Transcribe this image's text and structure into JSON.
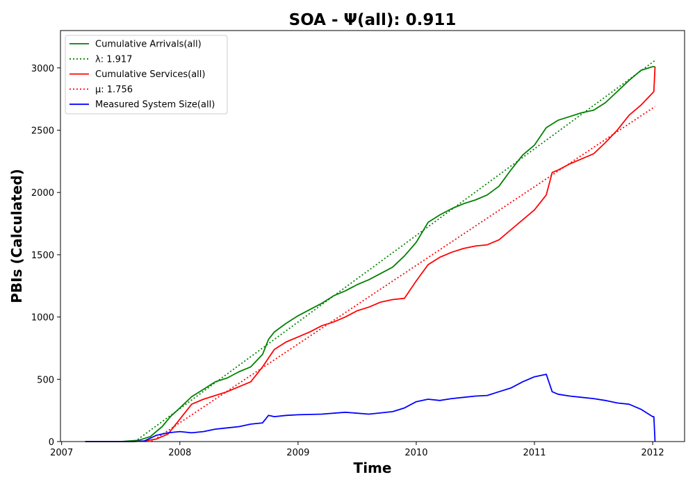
{
  "chart_data": {
    "type": "line",
    "title": "SOA -  Ψ(all): 0.911",
    "xlabel": "Time",
    "ylabel": "PBIs (Calculated)",
    "xlim": [
      2006.99,
      2012.27
    ],
    "ylim": [
      0,
      3300
    ],
    "xticks": [
      2007,
      2008,
      2009,
      2010,
      2011,
      2012
    ],
    "xtick_labels": [
      "2007",
      "2008",
      "2009",
      "2010",
      "2011",
      "2012"
    ],
    "yticks": [
      0,
      500,
      1000,
      1500,
      2000,
      2500,
      3000
    ],
    "ytick_labels": [
      "0",
      "500",
      "1000",
      "1500",
      "2000",
      "2500",
      "3000"
    ],
    "grid": false,
    "legend_position": "top-left",
    "series": [
      {
        "name": "Cumulative Arrivals(all)",
        "color": "#008000",
        "style": "solid",
        "x": [
          2007.2,
          2007.5,
          2007.65,
          2007.75,
          2007.85,
          2007.92,
          2008.0,
          2008.1,
          2008.2,
          2008.3,
          2008.4,
          2008.5,
          2008.6,
          2008.7,
          2008.75,
          2008.8,
          2008.9,
          2009.0,
          2009.1,
          2009.2,
          2009.3,
          2009.4,
          2009.5,
          2009.6,
          2009.7,
          2009.8,
          2009.9,
          2010.0,
          2010.1,
          2010.2,
          2010.3,
          2010.4,
          2010.5,
          2010.6,
          2010.7,
          2010.8,
          2010.9,
          2011.0,
          2011.1,
          2011.2,
          2011.3,
          2011.4,
          2011.5,
          2011.6,
          2011.7,
          2011.8,
          2011.9,
          2012.0,
          2012.02
        ],
        "y": [
          0,
          0,
          10,
          40,
          120,
          200,
          270,
          360,
          420,
          480,
          510,
          560,
          600,
          700,
          820,
          880,
          950,
          1010,
          1060,
          1110,
          1170,
          1210,
          1260,
          1300,
          1350,
          1400,
          1490,
          1600,
          1760,
          1820,
          1870,
          1910,
          1940,
          1980,
          2050,
          2180,
          2300,
          2380,
          2520,
          2580,
          2610,
          2640,
          2660,
          2720,
          2810,
          2900,
          2980,
          3010,
          3010
        ]
      },
      {
        "name": "λ: 1.917",
        "color": "#008000",
        "style": "dotted",
        "x": [
          2007.62,
          2012.02
        ],
        "y": [
          0,
          3060
        ]
      },
      {
        "name": "Cumulative Services(all)",
        "color": "#ff0000",
        "style": "solid",
        "x": [
          2007.2,
          2007.6,
          2007.7,
          2007.8,
          2007.9,
          2008.0,
          2008.05,
          2008.1,
          2008.2,
          2008.3,
          2008.4,
          2008.5,
          2008.6,
          2008.7,
          2008.8,
          2008.9,
          2009.0,
          2009.1,
          2009.2,
          2009.3,
          2009.4,
          2009.5,
          2009.6,
          2009.7,
          2009.8,
          2009.9,
          2010.0,
          2010.1,
          2010.2,
          2010.3,
          2010.4,
          2010.5,
          2010.6,
          2010.7,
          2010.8,
          2010.9,
          2011.0,
          2011.1,
          2011.15,
          2011.2,
          2011.3,
          2011.4,
          2011.5,
          2011.6,
          2011.7,
          2011.8,
          2011.9,
          2012.0,
          2012.01,
          2012.02
        ],
        "y": [
          0,
          0,
          5,
          20,
          60,
          180,
          240,
          300,
          340,
          370,
          400,
          440,
          480,
          600,
          740,
          800,
          840,
          880,
          930,
          960,
          1000,
          1050,
          1080,
          1120,
          1140,
          1150,
          1290,
          1420,
          1480,
          1520,
          1550,
          1570,
          1580,
          1620,
          1700,
          1780,
          1860,
          1980,
          2160,
          2180,
          2230,
          2270,
          2310,
          2400,
          2500,
          2620,
          2700,
          2800,
          2810,
          3010
        ]
      },
      {
        "name": "μ: 1.756",
        "color": "#ff0000",
        "style": "dotted",
        "x": [
          2007.76,
          2012.02
        ],
        "y": [
          0,
          2690
        ]
      },
      {
        "name": "Measured System Size(all)",
        "color": "#0000ff",
        "style": "solid",
        "x": [
          2007.2,
          2007.6,
          2007.7,
          2007.8,
          2007.9,
          2008.0,
          2008.1,
          2008.2,
          2008.3,
          2008.4,
          2008.5,
          2008.6,
          2008.7,
          2008.75,
          2008.8,
          2008.9,
          2009.0,
          2009.2,
          2009.4,
          2009.6,
          2009.8,
          2009.9,
          2010.0,
          2010.1,
          2010.2,
          2010.3,
          2010.4,
          2010.5,
          2010.6,
          2010.7,
          2010.8,
          2010.9,
          2011.0,
          2011.1,
          2011.15,
          2011.2,
          2011.3,
          2011.4,
          2011.5,
          2011.6,
          2011.7,
          2011.8,
          2011.85,
          2011.9,
          2012.0,
          2012.01,
          2012.02
        ],
        "y": [
          0,
          0,
          5,
          50,
          70,
          80,
          70,
          80,
          100,
          110,
          120,
          140,
          150,
          210,
          200,
          210,
          215,
          220,
          235,
          220,
          240,
          270,
          320,
          340,
          330,
          345,
          355,
          365,
          370,
          400,
          430,
          480,
          520,
          540,
          400,
          380,
          365,
          355,
          345,
          330,
          310,
          300,
          280,
          260,
          200,
          200,
          0
        ]
      }
    ]
  }
}
